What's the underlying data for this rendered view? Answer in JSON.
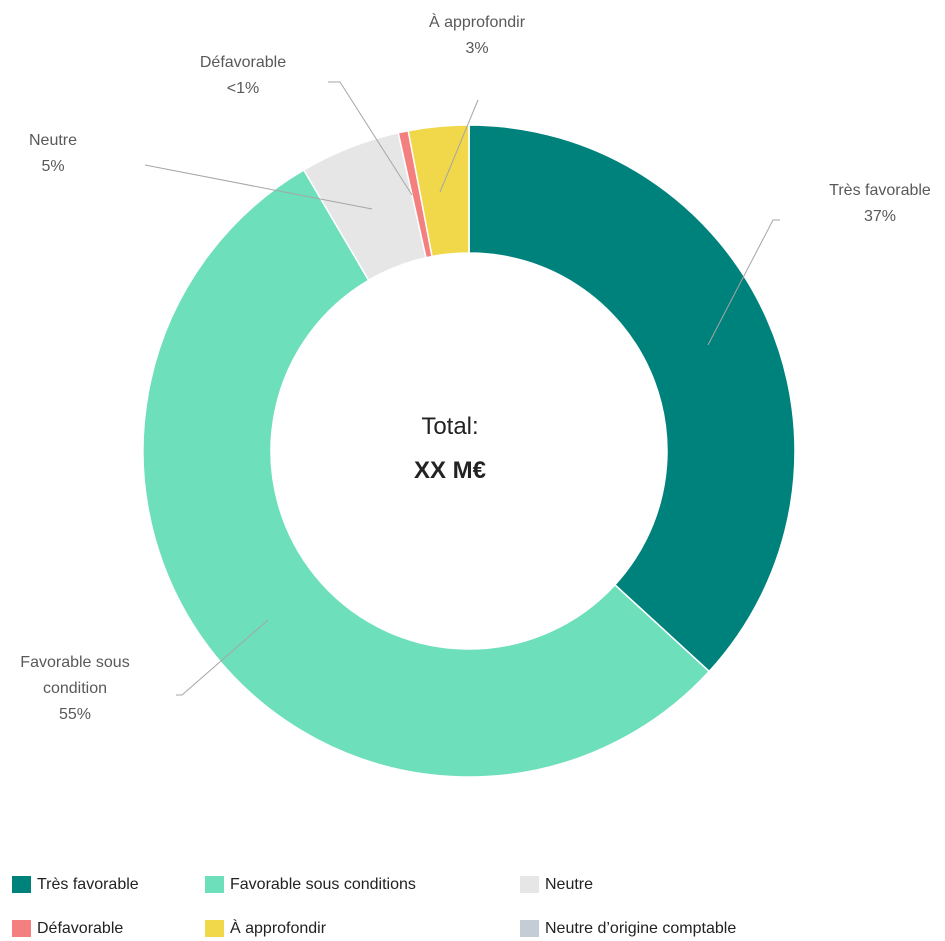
{
  "chart_data": {
    "type": "donut",
    "center_text": [
      "Total:",
      "XX M€"
    ],
    "categories": [
      "Très favorable",
      "Favorable sous conditions",
      "Neutre",
      "Défavorable",
      "À approfondir",
      "Neutre d’origine comptable"
    ],
    "slice_labels": [
      "Très favorable",
      "Favorable sous condition",
      "Neutre",
      "Défavorable",
      "À approfondir",
      null
    ],
    "values": [
      37,
      55,
      5,
      0.5,
      3,
      0
    ],
    "value_labels": [
      "37%",
      "55%",
      "5%",
      "<1%",
      "3%",
      null
    ],
    "colors": [
      "#00827c",
      "#6ddfbb",
      "#e6e6e6",
      "#f47f7f",
      "#f0d84a",
      "#c4ccd6"
    ],
    "legend": "bottom"
  }
}
